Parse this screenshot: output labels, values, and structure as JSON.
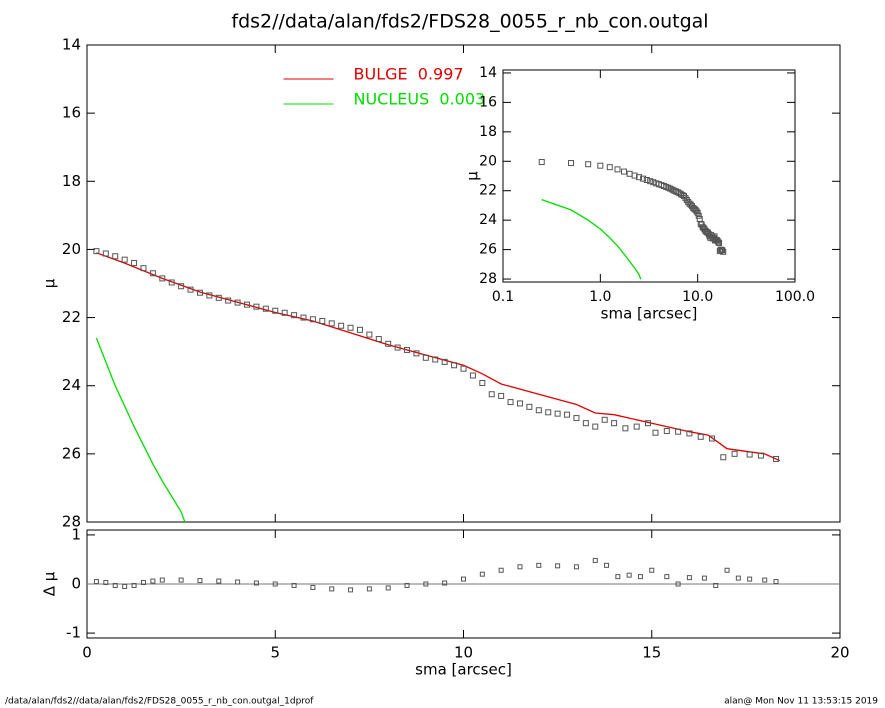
{
  "chart_data": [
    {
      "type": "scatter",
      "title": "fds2//data/alan/fds2/FDS28_0055_r_nb_con.outgal",
      "ylabel": "μ",
      "xlim": [
        0,
        20
      ],
      "ylim": [
        14,
        28
      ],
      "y_reversed": true,
      "yticks": [
        14,
        16,
        18,
        20,
        22,
        24,
        26,
        28
      ],
      "legend": "upper center",
      "marker_color": "#555555",
      "x": [
        0.25,
        0.5,
        0.75,
        1.0,
        1.25,
        1.5,
        1.75,
        2.0,
        2.25,
        2.5,
        2.75,
        3.0,
        3.25,
        3.5,
        3.75,
        4.0,
        4.25,
        4.5,
        4.75,
        5.0,
        5.25,
        5.5,
        5.75,
        6.0,
        6.25,
        6.5,
        6.75,
        7.0,
        7.25,
        7.5,
        7.75,
        8.0,
        8.25,
        8.5,
        8.75,
        9.0,
        9.25,
        9.5,
        9.75,
        10.0,
        10.25,
        10.5,
        10.75,
        11.0,
        11.25,
        11.5,
        11.75,
        12.0,
        12.25,
        12.5,
        12.75,
        13.0,
        13.25,
        13.5,
        13.75,
        14.0,
        14.3,
        14.6,
        14.9,
        15.1,
        15.4,
        15.7,
        16.0,
        16.3,
        16.6,
        16.9,
        17.2,
        17.6,
        17.9,
        18.3
      ],
      "values": [
        20.05,
        20.12,
        20.2,
        20.3,
        20.4,
        20.55,
        20.7,
        20.85,
        20.97,
        21.08,
        21.18,
        21.27,
        21.35,
        21.42,
        21.5,
        21.56,
        21.62,
        21.68,
        21.74,
        21.8,
        21.86,
        21.93,
        22.0,
        22.05,
        22.1,
        22.17,
        22.24,
        22.3,
        22.36,
        22.5,
        22.63,
        22.77,
        22.88,
        22.95,
        23.05,
        23.18,
        23.23,
        23.3,
        23.4,
        23.5,
        23.7,
        23.92,
        24.25,
        24.3,
        24.48,
        24.52,
        24.62,
        24.72,
        24.78,
        24.82,
        24.85,
        24.95,
        25.1,
        25.2,
        25.0,
        25.1,
        25.25,
        25.2,
        25.1,
        25.38,
        25.33,
        25.35,
        25.4,
        25.5,
        25.55,
        26.1,
        26.0,
        26.02,
        26.05,
        26.15
      ],
      "series": [
        {
          "name": "BULGE  0.997",
          "color": "#e00000",
          "x": [
            0.25,
            1,
            2,
            3,
            4,
            5,
            6,
            7,
            8,
            9,
            10,
            10.5,
            11,
            12,
            13,
            13.5,
            14,
            15,
            16,
            16.5,
            17,
            18,
            18.4
          ],
          "values": [
            20.1,
            20.4,
            20.85,
            21.25,
            21.55,
            21.85,
            22.1,
            22.45,
            22.8,
            23.1,
            23.4,
            23.65,
            23.95,
            24.25,
            24.55,
            24.8,
            24.85,
            25.1,
            25.35,
            25.45,
            25.85,
            26.0,
            26.2
          ]
        },
        {
          "name": "NUCLEUS  0.003",
          "color": "#00dd00",
          "x": [
            0.25,
            0.5,
            0.75,
            1.0,
            1.25,
            1.5,
            1.75,
            2.0,
            2.25,
            2.5,
            2.6
          ],
          "values": [
            22.6,
            23.3,
            24.0,
            24.6,
            25.2,
            25.75,
            26.3,
            26.8,
            27.25,
            27.7,
            28.0
          ]
        }
      ]
    },
    {
      "type": "scatter",
      "ylabel": "Δ μ",
      "xlabel": "sma [arcsec]",
      "xlim": [
        0,
        20
      ],
      "ylim": [
        -1.1,
        1.1
      ],
      "xticks": [
        0,
        5,
        10,
        15,
        20
      ],
      "yticks": [
        1,
        0,
        -1
      ],
      "reference_line": 0,
      "marker_color": "#555555",
      "x": [
        0.25,
        0.5,
        0.75,
        1.0,
        1.25,
        1.5,
        1.75,
        2.0,
        2.5,
        3.0,
        3.5,
        4.0,
        4.5,
        5.0,
        5.5,
        6.0,
        6.5,
        7.0,
        7.5,
        8.0,
        8.5,
        9.0,
        9.5,
        10.0,
        10.5,
        11.0,
        11.5,
        12.0,
        12.5,
        13.0,
        13.5,
        13.8,
        14.1,
        14.4,
        14.7,
        15.0,
        15.4,
        15.7,
        16.0,
        16.4,
        16.7,
        17.0,
        17.3,
        17.6,
        18.0,
        18.3
      ],
      "values": [
        0.05,
        0.03,
        -0.03,
        -0.05,
        -0.03,
        0.03,
        0.06,
        0.08,
        0.08,
        0.07,
        0.06,
        0.04,
        0.02,
        0.0,
        -0.03,
        -0.07,
        -0.1,
        -0.12,
        -0.1,
        -0.08,
        -0.03,
        0.0,
        0.02,
        0.1,
        0.2,
        0.28,
        0.35,
        0.38,
        0.37,
        0.35,
        0.48,
        0.38,
        0.15,
        0.18,
        0.15,
        0.28,
        0.15,
        0.0,
        0.13,
        0.12,
        -0.03,
        0.28,
        0.12,
        0.1,
        0.08,
        0.05
      ]
    },
    {
      "type": "scatter",
      "ylabel": "μ",
      "xlabel": "sma [arcsec]",
      "log_x": true,
      "xlim": [
        0.1,
        100
      ],
      "ylim": [
        13.8,
        28.2
      ],
      "y_reversed": true,
      "xticks": [
        0.1,
        {
          "value": 1,
          "label": "1.0"
        },
        {
          "value": 10,
          "label": "10.0"
        },
        {
          "value": 100,
          "label": "100.0"
        }
      ],
      "yticks": [
        14,
        16,
        18,
        20,
        22,
        24,
        26,
        28
      ]
    }
  ],
  "footer": {
    "left": "/data/alan/fds2//data/alan/fds2/FDS28_0055_r_nb_con.outgal_1dprof",
    "right": "alan@  Mon Nov 11 13:53:15 2019"
  }
}
